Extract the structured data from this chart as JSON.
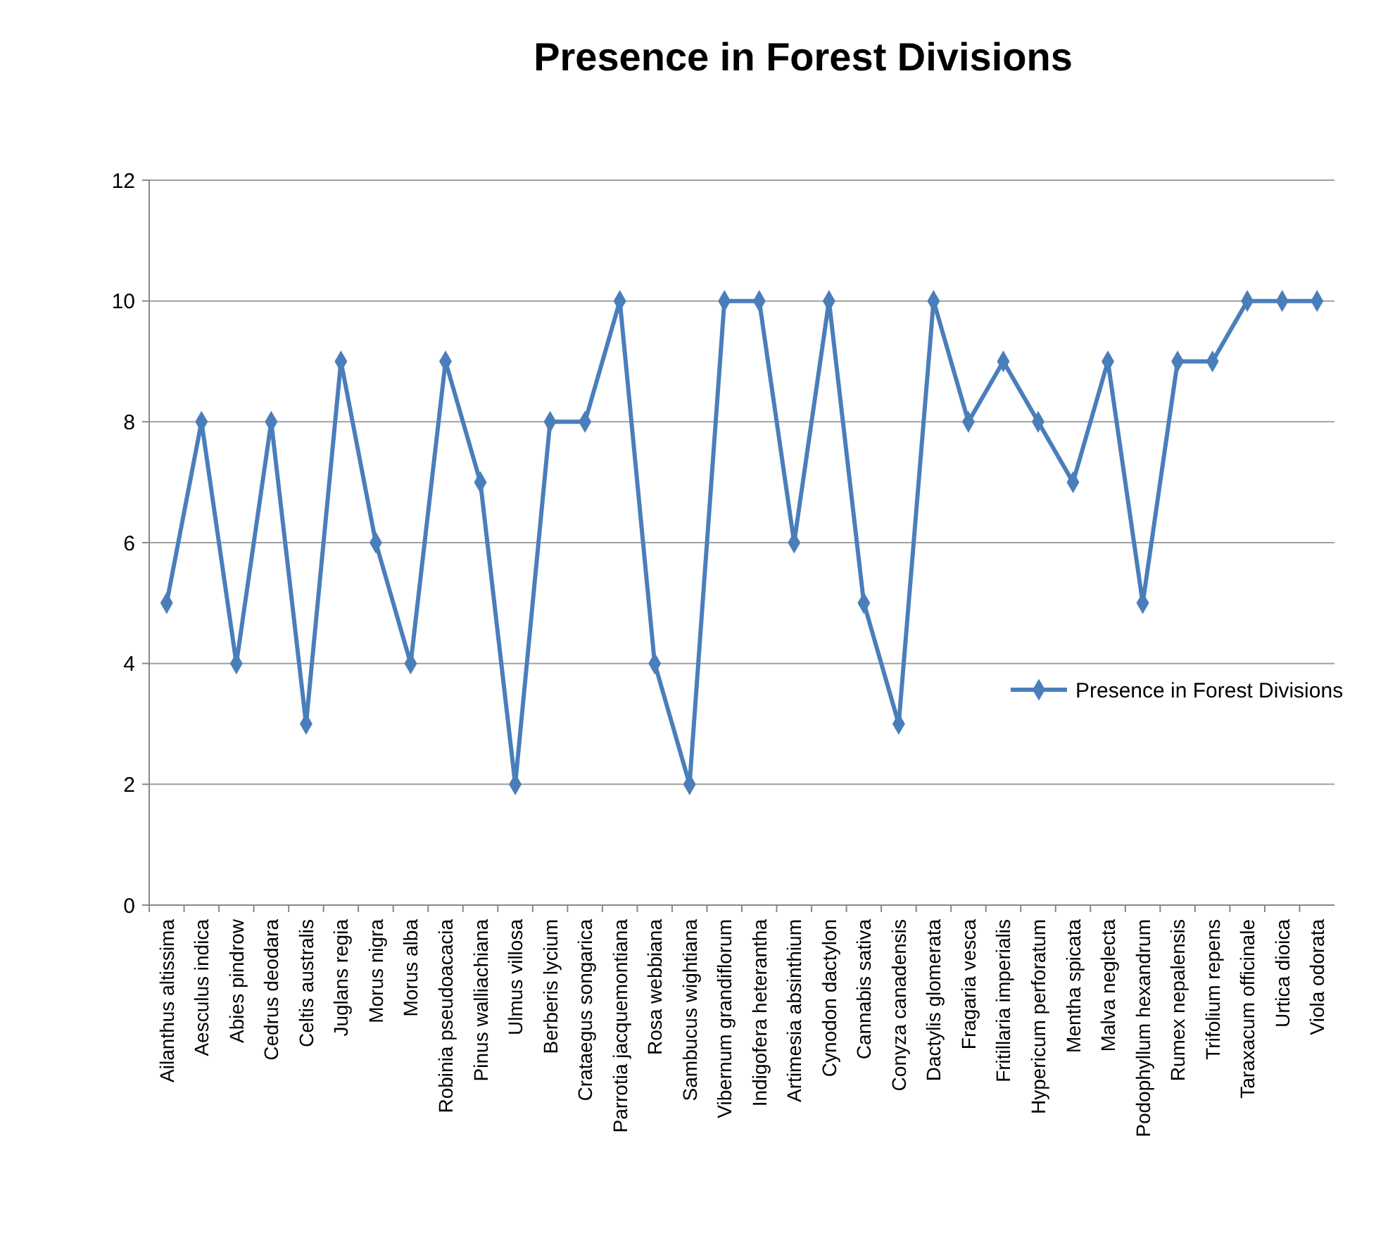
{
  "chart_data": {
    "type": "line",
    "title": "Presence in Forest Divisions",
    "categories": [
      "Ailanthus altissima",
      "Aesculus indica",
      "Abies pindrow",
      "Cedrus deodara",
      "Celtis australis",
      "Juglans regia",
      "Morus nigra",
      "Morus alba",
      "Robinia pseudoacacia",
      "Pinus walliachiana",
      "Ulmus villosa",
      "Berberis lycium",
      "Crataegus songarica",
      "Parrotia jacquemontiana",
      "Rosa webbiana",
      "Sambucus wightiana",
      "Vibernum grandiflorum",
      "Indigofera heterantha",
      "Artimesia absinthium",
      "Cynodon dactylon",
      "Cannabis sativa",
      "Conyza canadensis",
      "Dactylis glomerata",
      "Fragaria vesca",
      "Fritillaria imperialis",
      "Hypericum perforatum",
      "Mentha spicata",
      "Malva neglecta",
      "Podophyllum hexandrum",
      "Rumex nepalensis",
      "Trifolium repens",
      "Taraxacum officinale",
      "Urtica dioica",
      "Viola odorata"
    ],
    "series": [
      {
        "name": "Presence in Forest Divisions",
        "color": "#4a7ebb",
        "values": [
          5,
          8,
          4,
          8,
          3,
          9,
          6,
          4,
          9,
          7,
          2,
          8,
          8,
          10,
          4,
          2,
          10,
          10,
          6,
          10,
          5,
          3,
          10,
          8,
          9,
          8,
          7,
          9,
          5,
          9,
          9,
          10,
          10,
          10
        ]
      }
    ],
    "ylim": [
      0,
      12
    ],
    "yticks": [
      0,
      2,
      4,
      6,
      8,
      10,
      12
    ],
    "grid": "y",
    "legend": "right",
    "marker": "diamond",
    "line_style": "solid"
  }
}
